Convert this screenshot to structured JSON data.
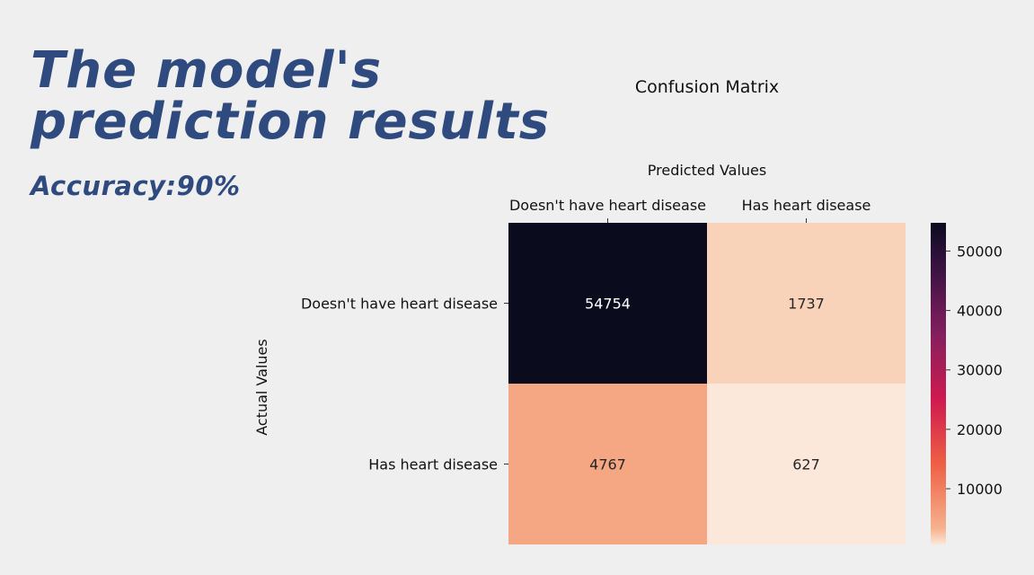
{
  "slide": {
    "title_line1": "The model's",
    "title_line2": "prediction results",
    "accuracy_label": "Accuracy:90%"
  },
  "chart_data": {
    "type": "heatmap",
    "title": "Confusion Matrix",
    "xlabel": "Predicted Values",
    "ylabel": "Actual Values",
    "x_categories": [
      "Doesn't have heart disease",
      "Has heart disease"
    ],
    "y_categories": [
      "Doesn't have heart disease",
      "Has heart disease"
    ],
    "values": [
      [
        54754,
        1737
      ],
      [
        4767,
        627
      ]
    ],
    "colorbar": {
      "ticks": [
        10000,
        20000,
        30000,
        40000,
        50000
      ],
      "labels": [
        "10000",
        "20000",
        "30000",
        "40000",
        "50000"
      ],
      "range": [
        627,
        54754
      ]
    },
    "x_axis_position": "top"
  }
}
